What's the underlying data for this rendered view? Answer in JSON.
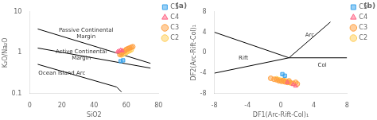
{
  "chart_data": [
    {
      "type": "scatter",
      "title": "(a)",
      "x_label": "SiO2",
      "y_label": "K₂O/Na₂O",
      "xlim": [
        0,
        80
      ],
      "ylim": [
        0.1,
        10
      ],
      "xticks": [
        0,
        20,
        40,
        60,
        80
      ],
      "yticks": [
        0.1,
        1,
        10
      ],
      "log": "y",
      "grid": false,
      "legend": "right",
      "series": [
        {
          "name": "C5",
          "marker": "square",
          "x": [
            56.5,
            58.0
          ],
          "y": [
            0.62,
            0.65
          ]
        },
        {
          "name": "C4",
          "marker": "triangle",
          "x": [
            54.5,
            55.5,
            56.5,
            57.5
          ],
          "y": [
            1.05,
            1.1,
            1.15,
            1.12
          ]
        },
        {
          "name": "C3",
          "marker": "circle",
          "x": [
            56.0,
            57.0,
            58.0,
            59.0,
            60.0,
            61.0,
            62.0,
            63.0,
            64.0
          ],
          "y": [
            0.9,
            0.95,
            1.05,
            1.1,
            1.2,
            1.25,
            1.3,
            1.35,
            1.4
          ]
        },
        {
          "name": "C2",
          "marker": "circle",
          "x": [
            57.0,
            58.0,
            59.0,
            60.0,
            61.0,
            62.0,
            63.0
          ],
          "y": [
            0.88,
            0.92,
            0.98,
            1.02,
            1.08,
            1.12,
            1.18
          ]
        }
      ],
      "lines": [
        {
          "x": [
            5,
            75
          ],
          "y": [
            3.8,
            0.55
          ],
          "color": "#000000"
        },
        {
          "x": [
            5,
            75
          ],
          "y": [
            1.3,
            0.42
          ],
          "color": "#000000"
        },
        {
          "x": [
            5,
            54,
            57
          ],
          "y": [
            0.52,
            0.145,
            0.11
          ],
          "color": "#000000"
        }
      ],
      "annotations": [
        {
          "text": "Passive Continental\nMargin",
          "x": 35,
          "y": 3.0
        },
        {
          "text": "Active Continental\nMargin",
          "x": 32,
          "y": 0.88
        },
        {
          "text": "Ocean Island Arc",
          "x": 20,
          "y": 0.32
        }
      ]
    },
    {
      "type": "scatter",
      "title": "(b)",
      "x_label": "DF1(Arc-Rift-Col)₁",
      "y_label": "DF2(Arc-Rift-Col)₁",
      "xlim": [
        -8,
        8
      ],
      "ylim": [
        -8,
        8
      ],
      "xticks": [
        -8,
        -4,
        0,
        4,
        8
      ],
      "yticks": [
        -8,
        -4,
        0,
        4,
        8
      ],
      "grid": false,
      "legend": "right",
      "series": [
        {
          "name": "C5",
          "marker": "square",
          "x": [
            0.2,
            0.5
          ],
          "y": [
            -4.2,
            -4.5
          ]
        },
        {
          "name": "C4",
          "marker": "triangle",
          "x": [
            0.8,
            1.5,
            1.8
          ],
          "y": [
            -5.8,
            -6.2,
            -6.5
          ]
        },
        {
          "name": "C3",
          "marker": "circle",
          "x": [
            -1.2,
            -0.8,
            -0.5,
            -0.2,
            0.1,
            0.3,
            0.5,
            0.8,
            1.0,
            1.2,
            1.5,
            1.8,
            2.0
          ],
          "y": [
            -5.0,
            -5.2,
            -5.3,
            -5.5,
            -5.6,
            -5.4,
            -5.7,
            -5.8,
            -5.5,
            -5.9,
            -6.0,
            -5.8,
            -6.1
          ]
        },
        {
          "name": "C2",
          "marker": "circle",
          "x": [
            -0.5,
            -0.2,
            0.1,
            0.4,
            0.6,
            0.8,
            1.0
          ],
          "y": [
            -5.1,
            -5.3,
            -5.4,
            -5.6,
            -5.5,
            -5.7,
            -5.8
          ]
        }
      ],
      "lines": [
        {
          "x": [
            -8,
            1
          ],
          "y": [
            4,
            -1
          ],
          "color": "#000000"
        },
        {
          "x": [
            1,
            6
          ],
          "y": [
            -1,
            6
          ],
          "color": "#000000"
        },
        {
          "x": [
            1,
            8
          ],
          "y": [
            -1,
            -1
          ],
          "color": "#000000"
        },
        {
          "x": [
            -8,
            1
          ],
          "y": [
            -4,
            -1
          ],
          "color": "#000000"
        }
      ],
      "annotations": [
        {
          "text": "Arc",
          "x": 3.5,
          "y": 3.5
        },
        {
          "text": "Rift",
          "x": -4.5,
          "y": -1.0
        },
        {
          "text": "Col",
          "x": 5.0,
          "y": -2.5
        }
      ]
    }
  ]
}
